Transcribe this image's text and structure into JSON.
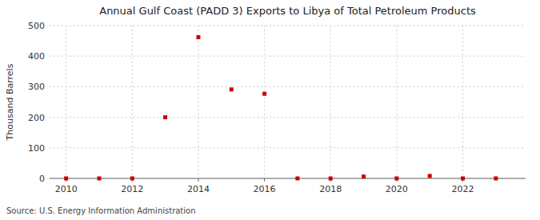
{
  "chart_data": {
    "type": "scatter",
    "title": "Annual Gulf Coast (PADD 3) Exports to Libya of Total Petroleum Products",
    "y_label": "Thousand Barrels",
    "annotation": "Source: U.S. Energy Information Administration",
    "x": [
      2010,
      2011,
      2012,
      2013,
      2014,
      2015,
      2016,
      2017,
      2018,
      2019,
      2020,
      2021,
      2022,
      2023
    ],
    "values": [
      0,
      0,
      0,
      200,
      462,
      291,
      277,
      0,
      0,
      6,
      0,
      8,
      0,
      0
    ],
    "color": "#cc0000",
    "marker": "square",
    "xlim": [
      2009.5,
      2023.9
    ],
    "ylim": [
      0,
      500
    ],
    "xticks": [
      2010,
      2012,
      2014,
      2016,
      2018,
      2020,
      2022
    ],
    "yticks": [
      0,
      100,
      200,
      300,
      400,
      500
    ],
    "grid": true
  }
}
